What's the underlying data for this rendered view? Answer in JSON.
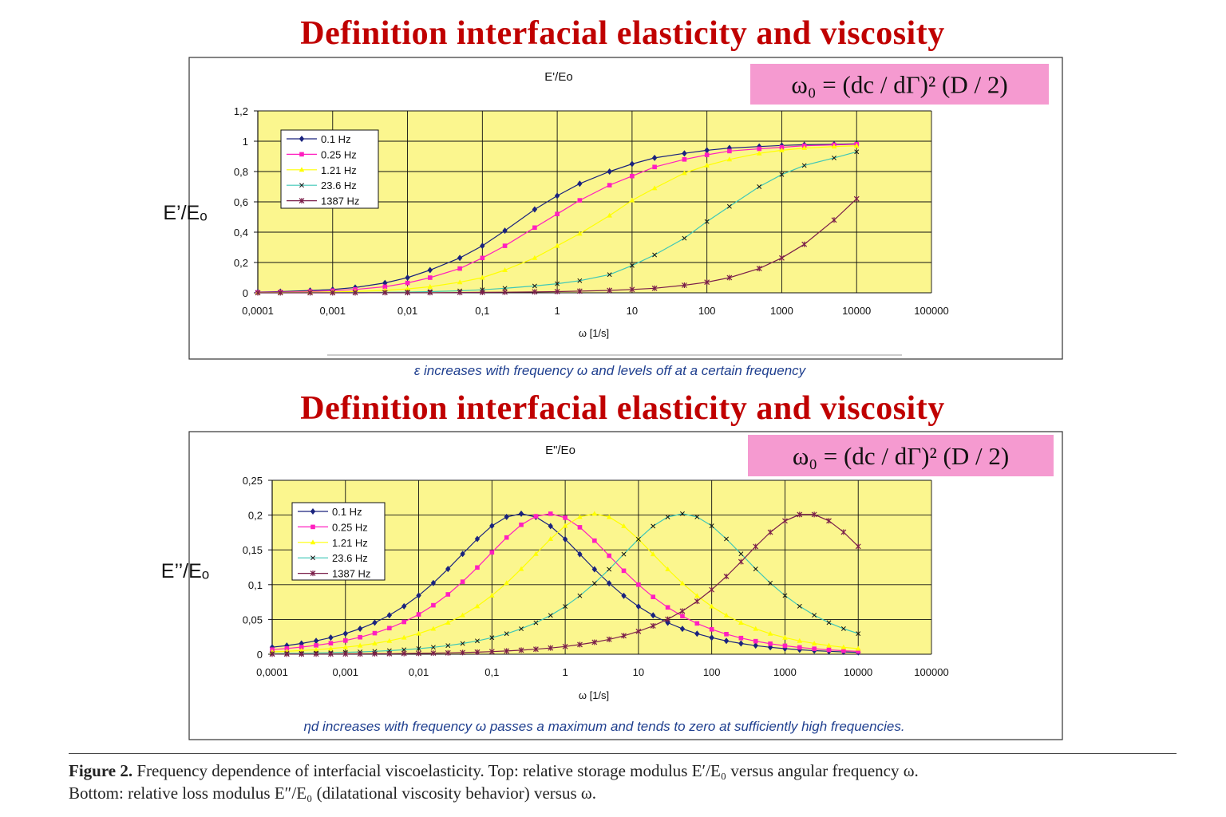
{
  "headings": [
    "Definition interfacial elasticity and viscosity",
    "Definition interfacial elasticity and viscosity"
  ],
  "formula": "ω₀ = (dc / dΓ)² (D / 2)",
  "colors": {
    "plot_bg": "#fbf68e",
    "formula_bg": "#f59ad0",
    "heading": "#c00000",
    "note": "#1f3f8f"
  },
  "charts": [
    {
      "title": "E'/Eo",
      "ylabel": "E’/Eₒ",
      "xlabel": "ω [1/s]",
      "note": "ε increases with frequency ω and levels off at a certain frequency",
      "y_ticks": [
        "0",
        "0,2",
        "0,4",
        "0,6",
        "0,8",
        "1",
        "1,2"
      ],
      "x_ticks": [
        "0,0001",
        "0,001",
        "0,01",
        "0,1",
        "1",
        "10",
        "100",
        "1000",
        "10000",
        "100000"
      ],
      "legend": [
        "0.1 Hz",
        "0.25 Hz",
        "1.21 Hz",
        "23.6 Hz",
        "1387 Hz"
      ]
    },
    {
      "title": "E\"/Eo",
      "ylabel": "E’’/Eₒ",
      "xlabel": "ω [1/s]",
      "note": "ηd increases with frequency ω passes a maximum and tends to zero at sufficiently high frequencies.",
      "y_ticks": [
        "0",
        "0,05",
        "0,1",
        "0,15",
        "0,2",
        "0,25"
      ],
      "x_ticks": [
        "0,0001",
        "0,001",
        "0,01",
        "0,1",
        "1",
        "10",
        "100",
        "1000",
        "10000",
        "100000"
      ],
      "legend": [
        "0.1 Hz",
        "0.25 Hz",
        "1.21 Hz",
        "23.6 Hz",
        "1387 Hz"
      ]
    }
  ],
  "chart_data": [
    {
      "type": "line",
      "title": "E'/Eo",
      "xlabel": "ω [1/s]",
      "ylabel": "E’/Eₒ",
      "x_scale": "log",
      "xlim": [
        0.0001,
        100000
      ],
      "ylim": [
        0,
        1.2
      ],
      "grid": true,
      "legend_position": "top-left",
      "x": [
        0.0001,
        0.0002,
        0.0005,
        0.001,
        0.002,
        0.005,
        0.01,
        0.02,
        0.05,
        0.1,
        0.2,
        0.5,
        1,
        2,
        5,
        10,
        20,
        50,
        100,
        200,
        500,
        1000,
        2000,
        5000,
        10000
      ],
      "series": [
        {
          "name": "0.1 Hz",
          "color": "#1a237e",
          "marker": "diamond",
          "values": [
            0.005,
            0.008,
            0.015,
            0.022,
            0.035,
            0.065,
            0.1,
            0.15,
            0.23,
            0.31,
            0.41,
            0.55,
            0.64,
            0.72,
            0.8,
            0.85,
            0.89,
            0.92,
            0.94,
            0.955,
            0.965,
            0.972,
            0.977,
            0.98,
            0.983
          ]
        },
        {
          "name": "0.25 Hz",
          "color": "#ff1fbf",
          "marker": "square",
          "values": [
            0.003,
            0.005,
            0.009,
            0.014,
            0.022,
            0.04,
            0.065,
            0.1,
            0.16,
            0.23,
            0.31,
            0.43,
            0.52,
            0.61,
            0.71,
            0.77,
            0.83,
            0.88,
            0.91,
            0.935,
            0.95,
            0.96,
            0.97,
            0.976,
            0.98
          ]
        },
        {
          "name": "1.21 Hz",
          "color": "#ffff00",
          "marker": "triangle",
          "values": [
            0.001,
            0.002,
            0.004,
            0.006,
            0.009,
            0.016,
            0.026,
            0.04,
            0.07,
            0.1,
            0.15,
            0.23,
            0.31,
            0.39,
            0.51,
            0.61,
            0.69,
            0.79,
            0.84,
            0.88,
            0.92,
            0.94,
            0.955,
            0.965,
            0.97
          ]
        },
        {
          "name": "23.6 Hz",
          "color": "#3aa59a",
          "marker": "x",
          "values": [
            0,
            0,
            0.001,
            0.001,
            0.002,
            0.003,
            0.005,
            0.008,
            0.013,
            0.02,
            0.03,
            0.045,
            0.06,
            0.08,
            0.12,
            0.18,
            0.25,
            0.36,
            0.47,
            0.57,
            0.7,
            0.78,
            0.84,
            0.89,
            0.93
          ]
        },
        {
          "name": "1387 Hz",
          "color": "#7b1f4a",
          "marker": "star",
          "values": [
            0,
            0,
            0,
            0,
            0,
            0.001,
            0.001,
            0.001,
            0.002,
            0.003,
            0.004,
            0.006,
            0.008,
            0.011,
            0.016,
            0.022,
            0.03,
            0.05,
            0.07,
            0.1,
            0.16,
            0.23,
            0.32,
            0.48,
            0.62
          ]
        }
      ]
    },
    {
      "type": "line",
      "title": "E\"/Eo",
      "xlabel": "ω [1/s]",
      "ylabel": "E’’/Eₒ",
      "x_scale": "log",
      "xlim": [
        0.0001,
        100000
      ],
      "ylim": [
        0,
        0.25
      ],
      "grid": true,
      "legend_position": "top-left",
      "series": [
        {
          "name": "0.1 Hz",
          "color": "#1a237e",
          "marker": "diamond",
          "peak_x": 0.25,
          "peak_y": 0.202,
          "width": 0.92
        },
        {
          "name": "0.25 Hz",
          "color": "#ff1fbf",
          "marker": "square",
          "peak_x": 0.6,
          "peak_y": 0.202,
          "width": 0.92
        },
        {
          "name": "1.21 Hz",
          "color": "#ffff00",
          "marker": "triangle",
          "peak_x": 2.5,
          "peak_y": 0.202,
          "width": 0.92
        },
        {
          "name": "23.6 Hz",
          "color": "#3aa59a",
          "marker": "x",
          "peak_x": 40,
          "peak_y": 0.202,
          "width": 0.92
        },
        {
          "name": "1387 Hz",
          "color": "#7b1f4a",
          "marker": "star",
          "peak_x": 2000,
          "peak_y": 0.202,
          "width": 0.92
        }
      ]
    }
  ],
  "caption": {
    "label": "Figure 2.",
    "line1": " Frequency dependence of interfacial viscoelasticity. Top: relative storage modulus E′/E₀ versus angular frequency ω.",
    "line2": "Bottom: relative loss modulus E″/E₀ (dilatational viscosity behavior) versus ω."
  }
}
